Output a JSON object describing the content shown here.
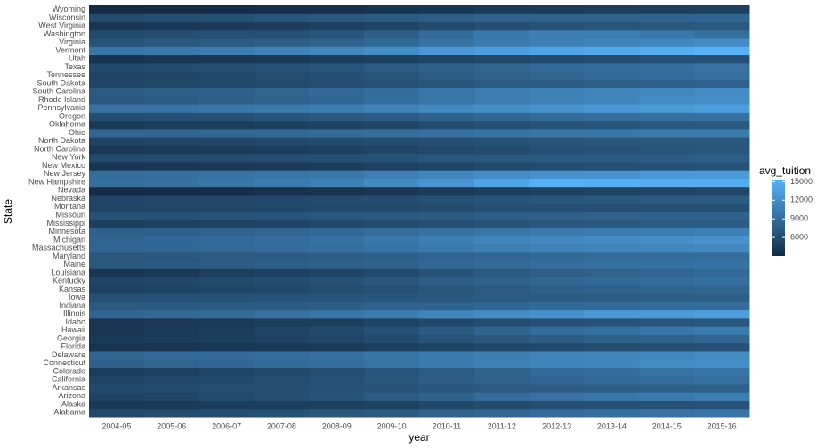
{
  "chart_data": {
    "type": "heatmap",
    "x_label": "year",
    "y_label": "State",
    "legend_title": "avg_tuition",
    "x": [
      "2004-05",
      "2005-06",
      "2006-07",
      "2007-08",
      "2008-09",
      "2009-10",
      "2010-11",
      "2011-12",
      "2012-13",
      "2013-14",
      "2014-15",
      "2015-16"
    ],
    "y": [
      "Alabama",
      "Alaska",
      "Arizona",
      "Arkansas",
      "California",
      "Colorado",
      "Connecticut",
      "Delaware",
      "Florida",
      "Georgia",
      "Hawaii",
      "Idaho",
      "Illinois",
      "Indiana",
      "Iowa",
      "Kansas",
      "Kentucky",
      "Louisiana",
      "Maine",
      "Maryland",
      "Massachusetts",
      "Michigan",
      "Minnesota",
      "Mississippi",
      "Missouri",
      "Montana",
      "Nebraska",
      "Nevada",
      "New Hampshire",
      "New Jersey",
      "New Mexico",
      "New York",
      "North Carolina",
      "North Dakota",
      "Ohio",
      "Oklahoma",
      "Oregon",
      "Pennsylvania",
      "Rhode Island",
      "South Carolina",
      "South Dakota",
      "Tennessee",
      "Texas",
      "Utah",
      "Vermont",
      "Virginia",
      "Washington",
      "West Virginia",
      "Wisconsin",
      "Wyoming"
    ],
    "values": [
      [
        5700,
        6000,
        6200,
        6500,
        6900,
        7300,
        8000,
        8500,
        8900,
        9200,
        9500,
        9800
      ],
      [
        4300,
        4400,
        4600,
        4800,
        4900,
        5200,
        5600,
        5900,
        6100,
        6300,
        6400,
        6600
      ],
      [
        5100,
        5400,
        5800,
        6200,
        6600,
        7300,
        8100,
        8800,
        9400,
        9800,
        10200,
        10600
      ],
      [
        5800,
        5900,
        6100,
        6200,
        6400,
        6600,
        7000,
        7200,
        7400,
        7600,
        7800,
        7900
      ],
      [
        5300,
        5500,
        5800,
        6100,
        6400,
        6900,
        7500,
        8000,
        8400,
        8700,
        9000,
        9300
      ],
      [
        4700,
        5000,
        5300,
        5700,
        6100,
        6700,
        7500,
        8100,
        8600,
        9000,
        9400,
        9700
      ],
      [
        8000,
        8200,
        8500,
        8800,
        9100,
        9600,
        10200,
        10700,
        11100,
        11400,
        11700,
        12000
      ],
      [
        8400,
        8600,
        8800,
        9100,
        9300,
        9700,
        10200,
        10600,
        11000,
        11200,
        11500,
        11700
      ],
      [
        3800,
        4000,
        4100,
        4300,
        4500,
        4800,
        5200,
        5600,
        5800,
        6000,
        6200,
        6400
      ],
      [
        4300,
        4500,
        4800,
        5100,
        5400,
        5900,
        6600,
        7100,
        7500,
        7800,
        8100,
        8400
      ],
      [
        4000,
        4400,
        4700,
        5200,
        5700,
        6500,
        7400,
        8200,
        8800,
        9300,
        9800,
        10200
      ],
      [
        4000,
        4200,
        4400,
        4600,
        4800,
        5200,
        5700,
        6000,
        6300,
        6600,
        6800,
        7000
      ],
      [
        8300,
        8600,
        8900,
        9300,
        9800,
        10400,
        11200,
        11800,
        12400,
        12800,
        13100,
        13500
      ],
      [
        7100,
        7200,
        7300,
        7500,
        7600,
        7900,
        8100,
        8400,
        8600,
        8700,
        8900,
        9000
      ],
      [
        6300,
        6400,
        6500,
        6600,
        6700,
        6900,
        7100,
        7200,
        7400,
        7500,
        7600,
        7700
      ],
      [
        5000,
        5200,
        5400,
        5700,
        6000,
        6400,
        6900,
        7300,
        7700,
        7900,
        8200,
        8400
      ],
      [
        5300,
        5500,
        5800,
        6100,
        6400,
        6900,
        7500,
        8000,
        8400,
        8700,
        9000,
        9300
      ],
      [
        4100,
        4400,
        4700,
        5000,
        5400,
        5900,
        6600,
        7200,
        7700,
        8100,
        8400,
        8700
      ],
      [
        7100,
        7300,
        7400,
        7600,
        7800,
        8100,
        8500,
        8800,
        9100,
        9300,
        9400,
        9600
      ],
      [
        7000,
        7100,
        7300,
        7400,
        7600,
        7800,
        8200,
        8400,
        8600,
        8800,
        9000,
        9100
      ],
      [
        8300,
        8500,
        8700,
        9000,
        9200,
        9600,
        10100,
        10500,
        10900,
        11100,
        11400,
        11600
      ],
      [
        8200,
        8500,
        8700,
        9000,
        9400,
        9900,
        10500,
        11100,
        11500,
        11800,
        12100,
        12400
      ],
      [
        7800,
        8000,
        8100,
        8400,
        8600,
        9000,
        9400,
        9800,
        10100,
        10300,
        10500,
        10700
      ],
      [
        4800,
        5000,
        5100,
        5300,
        5600,
        5900,
        6300,
        6600,
        6900,
        7100,
        7300,
        7500
      ],
      [
        6400,
        6500,
        6600,
        6700,
        6900,
        7100,
        7300,
        7600,
        7700,
        7900,
        8000,
        8100
      ],
      [
        5400,
        5500,
        5500,
        5600,
        5700,
        5800,
        6000,
        6200,
        6300,
        6300,
        6400,
        6500
      ],
      [
        5300,
        5400,
        5500,
        5700,
        5900,
        6100,
        6400,
        6700,
        6900,
        7000,
        7200,
        7300
      ],
      [
        3100,
        3200,
        3400,
        3600,
        3800,
        4100,
        4400,
        4700,
        5000,
        5200,
        5300,
        5500
      ],
      [
        9200,
        9500,
        9900,
        10300,
        10700,
        11700,
        12600,
        14000,
        15000,
        14900,
        14800,
        14700
      ],
      [
        9000,
        9200,
        9500,
        9800,
        10100,
        10600,
        11300,
        11800,
        12200,
        12500,
        12800,
        13100
      ],
      [
        4000,
        4200,
        4300,
        4500,
        4700,
        5000,
        5400,
        5800,
        6000,
        6200,
        6400,
        6600
      ],
      [
        5800,
        5900,
        6000,
        6200,
        6300,
        6500,
        6800,
        7000,
        7200,
        7300,
        7500,
        7600
      ],
      [
        4200,
        4400,
        4500,
        4700,
        5000,
        5300,
        5700,
        6000,
        6300,
        6500,
        6700,
        6900
      ],
      [
        5300,
        5400,
        5500,
        5600,
        5800,
        6000,
        6200,
        6500,
        6600,
        6800,
        6900,
        7000
      ],
      [
        8300,
        8400,
        8500,
        8700,
        8800,
        9100,
        9300,
        9600,
        9800,
        9900,
        10100,
        10200
      ],
      [
        4400,
        4600,
        4700,
        5000,
        5200,
        5500,
        5900,
        6300,
        6600,
        6800,
        7000,
        7200
      ],
      [
        6100,
        6300,
        6500,
        6800,
        7100,
        7500,
        8000,
        8400,
        8800,
        9000,
        9300,
        9500
      ],
      [
        9400,
        9600,
        9900,
        10200,
        10500,
        11000,
        11600,
        12100,
        12500,
        12800,
        13100,
        13400
      ],
      [
        7100,
        7400,
        7700,
        8100,
        8500,
        9100,
        9800,
        10400,
        10900,
        11300,
        11700,
        12000
      ],
      [
        7300,
        7600,
        7800,
        8200,
        8600,
        9100,
        9800,
        10400,
        10800,
        11200,
        11500,
        11800
      ],
      [
        5400,
        5600,
        5700,
        5900,
        6100,
        6400,
        6800,
        7200,
        7400,
        7600,
        7800,
        8000
      ],
      [
        5200,
        5400,
        5700,
        6000,
        6300,
        6800,
        7500,
        8000,
        8400,
        8700,
        9000,
        9300
      ],
      [
        5800,
        6000,
        6200,
        6500,
        6800,
        7300,
        7800,
        8300,
        8700,
        9000,
        9200,
        9500
      ],
      [
        3800,
        4000,
        4100,
        4300,
        4600,
        4900,
        5300,
        5600,
        5900,
        6100,
        6300,
        6500
      ],
      [
        9800,
        10100,
        10400,
        10900,
        11300,
        12000,
        12800,
        13500,
        14000,
        14400,
        14800,
        15200
      ],
      [
        6700,
        7000,
        7300,
        7700,
        8100,
        8700,
        9500,
        10200,
        10700,
        11100,
        11400,
        11800
      ],
      [
        5900,
        6100,
        6300,
        6500,
        6800,
        7600,
        8800,
        10000,
        10600,
        10500,
        10000,
        9200
      ],
      [
        4100,
        4300,
        4500,
        4700,
        5000,
        5300,
        5800,
        6200,
        6500,
        6800,
        7000,
        7200
      ],
      [
        6000,
        6200,
        6500,
        6800,
        7000,
        7300,
        7600,
        7900,
        8000,
        8100,
        8200,
        8300
      ],
      [
        3000,
        3100,
        3200,
        3400,
        3500,
        3800,
        4000,
        4300,
        4500,
        4600,
        4800,
        4900
      ]
    ],
    "colorlim": [
      3000,
      15200
    ],
    "colorticks": [
      6000,
      9000,
      12000,
      15000
    ],
    "low_color": "#132B43",
    "high_color": "#56B1F7"
  }
}
